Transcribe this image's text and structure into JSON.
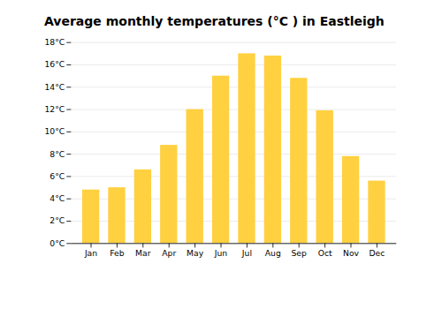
{
  "chart_data": {
    "type": "bar",
    "title": "Average monthly temperatures (°C ) in Eastleigh",
    "categories": [
      "Jan",
      "Feb",
      "Mar",
      "Apr",
      "May",
      "Jun",
      "Jul",
      "Aug",
      "Sep",
      "Oct",
      "Nov",
      "Dec"
    ],
    "values": [
      4.8,
      5.0,
      6.6,
      8.8,
      12.0,
      15.0,
      17.0,
      16.8,
      14.8,
      11.9,
      7.8,
      5.6
    ],
    "color": "#FFD040",
    "ylim": [
      0,
      18
    ],
    "yticks": [
      {
        "value": 0,
        "label": "0°C"
      },
      {
        "value": 2,
        "label": "2°C"
      },
      {
        "value": 4,
        "label": "4°C"
      },
      {
        "value": 6,
        "label": "6°C"
      },
      {
        "value": 8,
        "label": "8°C"
      },
      {
        "value": 10,
        "label": "10°C"
      },
      {
        "value": 12,
        "label": "12°C"
      },
      {
        "value": 14,
        "label": "14°C"
      },
      {
        "value": 16,
        "label": "16°C"
      },
      {
        "value": 18,
        "label": "18°C"
      }
    ],
    "grid": true
  }
}
